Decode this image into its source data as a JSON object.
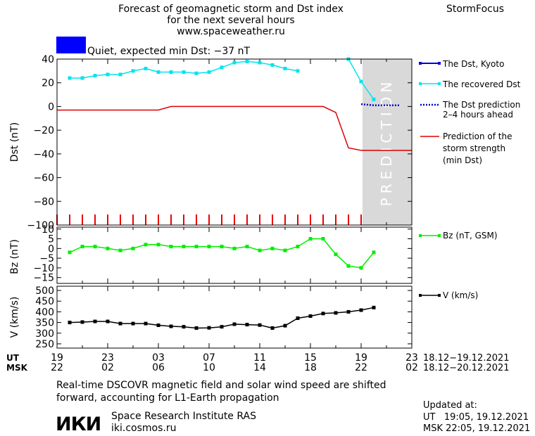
{
  "header": {
    "title_lines": [
      "Forecast of geomagnetic storm and Dst index",
      "for the next several hours",
      "www.spaceweather.ru"
    ],
    "brand": "StormFocus"
  },
  "status": {
    "text": "Quiet, expected min Dst: −37 nT",
    "color": "#0000ff"
  },
  "legend": {
    "dst_kyoto": "The Dst, Kyoto",
    "recovered": "The recovered Dst",
    "prediction_lines": [
      "The Dst prediction",
      "2–4 hours ahead"
    ],
    "storm_lines": [
      "Prediction of the",
      "storm strength",
      "(min Dst)"
    ],
    "bz": "Bz (nT, GSM)",
    "v": "V (km/s)"
  },
  "prediction_label": "PREDICTION",
  "time_axis": {
    "ut_label": "UT",
    "msk_label": "MSK",
    "ut_ticks": [
      "19",
      "23",
      "03",
      "07",
      "11",
      "15",
      "19",
      "23"
    ],
    "msk_ticks": [
      "22",
      "02",
      "06",
      "10",
      "14",
      "18",
      "22",
      "02"
    ],
    "ut_range": "18.12−19.12.2021",
    "msk_range": "18.12−20.12.2021"
  },
  "footer": {
    "note_lines": [
      "Real-time DSCOVR magnetic field and solar wind speed are shifted",
      "forward, accounting for L1-Earth propagation"
    ],
    "logo": "ИКИ",
    "institute": "Space Research Institute RAS",
    "site": "iki.cosmos.ru",
    "updated_label": "Updated at:",
    "updated_ut": "UT   19:05, 19.12.2021",
    "updated_msk": "MSK 22:05, 19.12.2021"
  },
  "colors": {
    "recovered": "#00e5ee",
    "prediction": "#0000cc",
    "storm": "#dd0000",
    "bz": "#00ee00",
    "v": "#000000",
    "shade": "#d9d9d9",
    "ticks": "#ee0000"
  },
  "chart_data": [
    {
      "type": "line",
      "ylabel": "Dst (nT)",
      "xlim": [
        0,
        28
      ],
      "ylim": [
        -100,
        40
      ],
      "yticks": [
        40,
        20,
        0,
        -20,
        -40,
        -60,
        -80,
        -100
      ],
      "prediction_start_hour": 24,
      "series": [
        {
          "name": "The recovered Dst",
          "x": [
            1,
            2,
            3,
            4,
            5,
            6,
            7,
            8,
            9,
            10,
            11,
            12,
            13,
            14,
            15,
            16,
            17,
            18,
            19
          ],
          "y": [
            24,
            24,
            26,
            27,
            27,
            30,
            32,
            29,
            29,
            29,
            28,
            29,
            33,
            37,
            38,
            37,
            35,
            32,
            30
          ]
        },
        {
          "name": "The recovered Dst",
          "x": [
            23,
            24,
            25
          ],
          "y": [
            40,
            21,
            6
          ]
        },
        {
          "name": "The Dst prediction 2–4 hours ahead",
          "x": [
            24,
            25,
            26,
            27
          ],
          "y": [
            2,
            1,
            1,
            1
          ]
        },
        {
          "name": "Prediction of the storm strength (min Dst)",
          "x": [
            0,
            8,
            9,
            21,
            22,
            23,
            24,
            28
          ],
          "y": [
            -3,
            -3,
            0,
            0,
            -5,
            -35,
            -37,
            -37
          ]
        }
      ]
    },
    {
      "type": "line",
      "ylabel": "Bz (nT)",
      "xlim": [
        0,
        28
      ],
      "ylim": [
        -18,
        11
      ],
      "yticks": [
        10,
        5,
        0,
        -5,
        -10,
        -15
      ],
      "series": [
        {
          "name": "Bz (nT, GSM)",
          "x": [
            1,
            2,
            3,
            4,
            5,
            6,
            7,
            8,
            9,
            10,
            11,
            12,
            13,
            14,
            15,
            16,
            17,
            18,
            19,
            20,
            21,
            22,
            23,
            24,
            25
          ],
          "y": [
            -2,
            1,
            1,
            0,
            -1,
            0,
            2,
            2,
            1,
            1,
            1,
            1,
            1,
            0,
            1,
            -1,
            0,
            -1,
            1,
            5,
            5,
            -3,
            -9,
            -10,
            -2
          ]
        }
      ]
    },
    {
      "type": "line",
      "ylabel": "V (km/s)",
      "xlim": [
        0,
        28
      ],
      "ylim": [
        230,
        520
      ],
      "yticks": [
        500,
        450,
        400,
        350,
        300,
        250
      ],
      "series": [
        {
          "name": "V (km/s)",
          "x": [
            1,
            2,
            3,
            4,
            5,
            6,
            7,
            8,
            9,
            10,
            11,
            12,
            13,
            14,
            15,
            16,
            17,
            18,
            19,
            20,
            21,
            22,
            23,
            24,
            25
          ],
          "y": [
            350,
            352,
            355,
            355,
            345,
            345,
            345,
            337,
            332,
            330,
            324,
            325,
            330,
            342,
            340,
            338,
            324,
            335,
            370,
            380,
            392,
            395,
            400,
            408,
            420
          ]
        }
      ]
    }
  ]
}
